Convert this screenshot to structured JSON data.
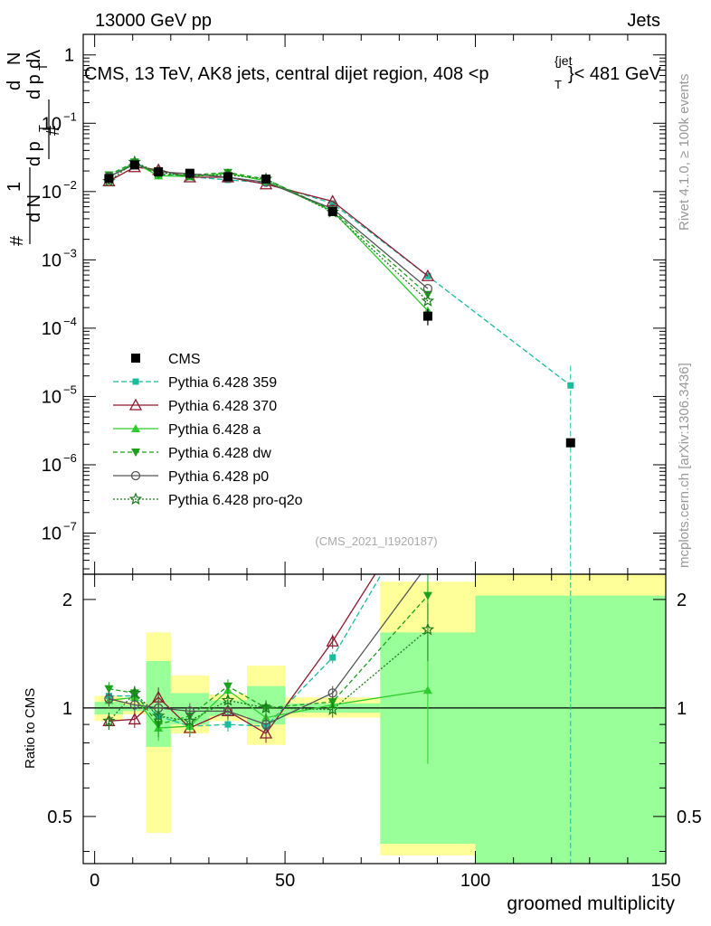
{
  "header": {
    "left": "13000 GeV pp",
    "right": "Jets"
  },
  "side_text": {
    "rivet": "Rivet 4.1.0, ≥ 100k events",
    "mcplots": "mcplots.cern.ch [arXiv:1306.3436]"
  },
  "colors": {
    "cms": "#000000",
    "p359": "#1abc9c",
    "p370": "#8b1a2e",
    "pa": "#2ecc2e",
    "pdw": "#1aa01a",
    "pp0": "#555555",
    "pq2o": "#1e7a1e",
    "band_yellow": "#ffff99",
    "band_green": "#99ff99"
  },
  "chart_data": {
    "type": "line",
    "title": "CMS, 13 TeV, AK8 jets, central dijet region, 408 < p_T^{jet} < 481 GeV",
    "title_parts": {
      "main": "CMS, 13 TeV, AK8 jets, central dijet region, 408 <p",
      "sub": "T",
      "sup": "{jet",
      "tail": "}< 481 GeV"
    },
    "ylabel_parts": {
      "den": "d N",
      "den2": "d p",
      "den3": "d p",
      "hash": "#",
      "one": "1",
      "num": "d",
      "num2": "N",
      "T": "T",
      "dlambda": "dλ"
    },
    "xlabel": "groomed multiplicity",
    "ratio_ylabel": "Ratio to CMS",
    "watermark": "(CMS_2021_I1920187)",
    "xlim": [
      -3,
      150
    ],
    "ylim": [
      2.5e-08,
      2.0
    ],
    "ratio_ylim": [
      0.37,
      2.35
    ],
    "x_ticks": [
      "0",
      "50",
      "100",
      "150"
    ],
    "x_tick_values": [
      0,
      50,
      100,
      150
    ],
    "y_ticks": [
      {
        "v": 1,
        "mant": "1",
        "exp": ""
      },
      {
        "v": 0.1,
        "mant": "10",
        "exp": "−1"
      },
      {
        "v": 0.01,
        "mant": "10",
        "exp": "−2"
      },
      {
        "v": 0.001,
        "mant": "10",
        "exp": "−3"
      },
      {
        "v": 0.0001,
        "mant": "10",
        "exp": "−4"
      },
      {
        "v": 1e-05,
        "mant": "10",
        "exp": "−5"
      },
      {
        "v": 1e-06,
        "mant": "10",
        "exp": "−6"
      },
      {
        "v": 1e-07,
        "mant": "10",
        "exp": "−7"
      }
    ],
    "ratio_ticks": [
      {
        "v": 0.5,
        "label": "0.5"
      },
      {
        "v": 1,
        "label": "1"
      },
      {
        "v": 2,
        "label": "2"
      }
    ],
    "bins": [
      [
        0,
        7.5
      ],
      [
        7.5,
        13.5
      ],
      [
        13.5,
        20
      ],
      [
        20,
        30
      ],
      [
        30,
        40
      ],
      [
        40,
        50
      ],
      [
        50,
        75
      ],
      [
        75,
        100
      ],
      [
        100,
        150
      ]
    ],
    "x": [
      3.75,
      10.5,
      16.75,
      25,
      35,
      45,
      62.5,
      87.5,
      125
    ],
    "cms": {
      "name": "CMS",
      "values": [
        0.0155,
        0.0245,
        0.0195,
        0.0185,
        0.0165,
        0.0152,
        0.0051,
        0.00015,
        2.1e-06
      ],
      "errors": [
        0.0008,
        0.001,
        0.001,
        0.001,
        0.0008,
        0.0008,
        0.0003,
        4e-05,
        3e-07
      ]
    },
    "bands": {
      "total": [
        [
          0.92,
          1.08
        ],
        [
          0.96,
          1.04
        ],
        [
          0.45,
          1.62
        ],
        [
          0.85,
          1.23
        ],
        [
          0.92,
          1.09
        ],
        [
          0.79,
          1.31
        ],
        [
          0.94,
          1.07
        ],
        [
          0.39,
          2.24
        ],
        [
          0.35,
          2.35
        ]
      ],
      "stat": [
        [
          0.96,
          1.04
        ],
        [
          0.98,
          1.02
        ],
        [
          0.78,
          1.35
        ],
        [
          0.9,
          1.1
        ],
        [
          0.95,
          1.05
        ],
        [
          0.9,
          1.15
        ],
        [
          0.97,
          1.03
        ],
        [
          0.42,
          1.62
        ],
        [
          0.35,
          2.05
        ]
      ]
    },
    "series": [
      {
        "name": "Pythia 6.428 359",
        "key": "p359",
        "marker": "square",
        "dash": "6,3",
        "values": [
          0.0168,
          0.0265,
          0.0185,
          0.0165,
          0.0148,
          0.0135,
          0.0067,
          0.00058,
          1.45e-05
        ],
        "ratio": [
          1.08,
          1.08,
          0.95,
          0.89,
          0.9,
          0.89,
          1.38,
          3.9,
          6.9
        ],
        "ratio_err": [
          0.04,
          0.04,
          0.05,
          0.04,
          0.04,
          0.04,
          0.05,
          0.2,
          0.5
        ]
      },
      {
        "name": "Pythia 6.428 370",
        "key": "p370",
        "marker": "triangle-open",
        "dash": "",
        "values": [
          0.0142,
          0.0228,
          0.0208,
          0.0162,
          0.0162,
          0.0128,
          0.0072,
          0.00058,
          null
        ],
        "ratio": [
          0.92,
          0.93,
          1.07,
          0.88,
          0.98,
          0.85,
          1.53,
          4.0,
          null
        ],
        "ratio_err": [
          0.05,
          0.05,
          0.07,
          0.05,
          0.05,
          0.05,
          0.07,
          0.3,
          null
        ]
      },
      {
        "name": "Pythia 6.428 a",
        "key": "pa",
        "marker": "triangle",
        "dash": "",
        "values": [
          0.0162,
          0.0262,
          0.017,
          0.0165,
          0.0185,
          0.0143,
          0.0052,
          0.00018,
          null
        ],
        "ratio": [
          1.05,
          1.07,
          0.88,
          0.89,
          1.12,
          0.94,
          1.02,
          1.12,
          null
        ],
        "ratio_err": [
          0.05,
          0.05,
          0.07,
          0.05,
          0.05,
          0.05,
          0.05,
          0.42,
          null
        ]
      },
      {
        "name": "Pythia 6.428 dw",
        "key": "pdw",
        "marker": "triangle-down",
        "dash": "5,3",
        "values": [
          0.0175,
          0.027,
          0.0175,
          0.0175,
          0.019,
          0.0152,
          0.0053,
          0.00031,
          null
        ],
        "ratio": [
          1.13,
          1.1,
          0.9,
          0.95,
          1.15,
          1.0,
          1.04,
          2.05,
          null
        ],
        "ratio_err": [
          0.05,
          0.05,
          0.07,
          0.05,
          0.05,
          0.05,
          0.05,
          0.3,
          null
        ]
      },
      {
        "name": "Pythia 6.428 p0",
        "key": "pp0",
        "marker": "circle-open",
        "dash": "",
        "values": [
          0.0165,
          0.025,
          0.0195,
          0.0182,
          0.0162,
          0.0137,
          0.0056,
          0.00038,
          null
        ],
        "ratio": [
          1.06,
          1.02,
          1.0,
          0.98,
          0.98,
          0.9,
          1.1,
          2.5,
          null
        ],
        "ratio_err": [
          0.05,
          0.05,
          0.07,
          0.05,
          0.05,
          0.05,
          0.05,
          0.3,
          null
        ]
      },
      {
        "name": "Pythia 6.428 pro-q2o",
        "key": "pq2o",
        "marker": "star",
        "dash": "2,2",
        "values": [
          0.0142,
          0.027,
          0.019,
          0.017,
          0.0175,
          0.0152,
          0.005,
          0.00025,
          null
        ],
        "ratio": [
          0.92,
          1.1,
          0.95,
          0.92,
          1.05,
          1.0,
          0.99,
          1.65,
          null
        ],
        "ratio_err": [
          0.05,
          0.05,
          0.07,
          0.05,
          0.05,
          0.05,
          0.05,
          0.3,
          null
        ]
      }
    ]
  }
}
